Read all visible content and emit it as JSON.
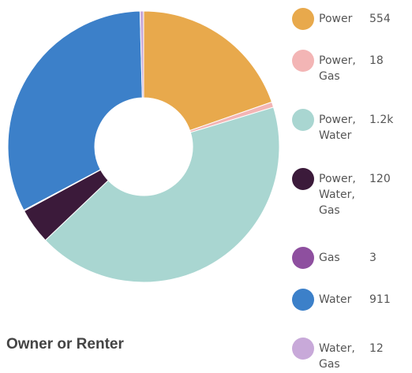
{
  "chart_data": {
    "type": "donut",
    "title": "Owner or Renter",
    "categories": [
      "Power",
      "Power, Gas",
      "Power, Water",
      "Power, Water, Gas",
      "Gas",
      "Water",
      "Water, Gas"
    ],
    "values": [
      554,
      18,
      1200,
      120,
      3,
      911,
      12
    ],
    "value_labels": [
      "554",
      "18",
      "1.2k",
      "120",
      "3",
      "911",
      "12"
    ],
    "colors": [
      "#e8a94c",
      "#f3b5b5",
      "#a9d6d1",
      "#3b1a3a",
      "#8e4f9f",
      "#3c80c9",
      "#c8a9d9"
    ]
  }
}
